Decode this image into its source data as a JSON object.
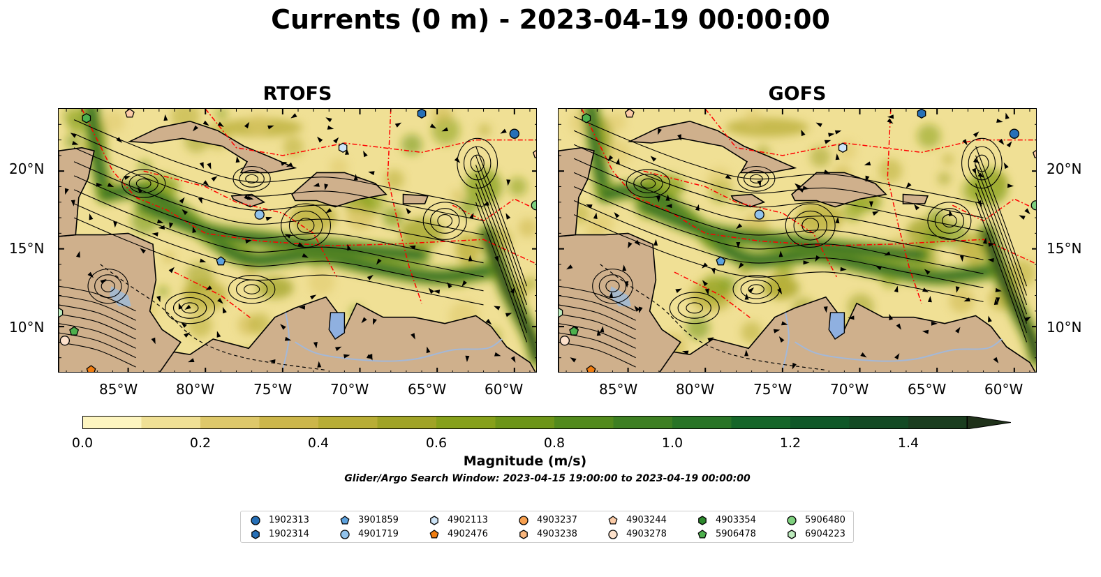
{
  "figure": {
    "title": "Currents (0 m) - 2023-04-19 00:00:00",
    "window_note": "Glider/Argo Search Window: 2023-04-15 19:00:00 to 2023-04-19 00:00:00"
  },
  "panels": [
    {
      "title": "RTOFS"
    },
    {
      "title": "GOFS"
    }
  ],
  "axes": {
    "lon_labels": [
      "85°W",
      "80°W",
      "75°W",
      "70°W",
      "65°W",
      "60°W"
    ],
    "lat_labels": [
      "20°N",
      "15°N",
      "10°N"
    ],
    "lon_range": [
      -89.5,
      -58.5
    ],
    "lat_range": [
      7.0,
      24.0
    ]
  },
  "colorbar": {
    "label": "Magnitude (m/s)",
    "ticks": [
      "0.0",
      "0.2",
      "0.4",
      "0.6",
      "0.8",
      "1.0",
      "1.2",
      "1.4"
    ],
    "range": [
      0,
      1.5
    ],
    "extend": "max",
    "colors": [
      "#fdf5c0",
      "#f0e095",
      "#dec86a",
      "#ccb64a",
      "#b8ad35",
      "#a0a326",
      "#86a01a",
      "#6d9518",
      "#528a1c",
      "#3d7f22",
      "#287426",
      "#156629",
      "#0f5828",
      "#134a24",
      "#1a3d1f",
      "#1f311a"
    ]
  },
  "colors": {
    "land": "#cfb08c",
    "lake": "#8fb0e0",
    "river": "#a3b8d8",
    "eez": "#ff0000",
    "stream": "#000000"
  },
  "legend": [
    {
      "id": "1902313",
      "marker": "circle",
      "color": "#2770b7"
    },
    {
      "id": "1902314",
      "marker": "hexagon",
      "color": "#2770b7"
    },
    {
      "id": "3901859",
      "marker": "pentagon",
      "color": "#5da2de"
    },
    {
      "id": "4901719",
      "marker": "circle",
      "color": "#92c3ec"
    },
    {
      "id": "4902113",
      "marker": "hexagon",
      "color": "#cde4f7"
    },
    {
      "id": "4902476",
      "marker": "pentagon",
      "color": "#f07d10"
    },
    {
      "id": "4903237",
      "marker": "circle",
      "color": "#f7a050"
    },
    {
      "id": "4903238",
      "marker": "hexagon",
      "color": "#f9b67d"
    },
    {
      "id": "4903244",
      "marker": "pentagon",
      "color": "#fbcba7"
    },
    {
      "id": "4903278",
      "marker": "circle",
      "color": "#fde1cb"
    },
    {
      "id": "4903354",
      "marker": "hexagon",
      "color": "#2d8a2d"
    },
    {
      "id": "5906478",
      "marker": "pentagon",
      "color": "#4db04d"
    },
    {
      "id": "5906480",
      "marker": "circle",
      "color": "#7ed07e"
    },
    {
      "id": "6904223",
      "marker": "hexagon",
      "color": "#bdebbd"
    }
  ],
  "floats": [
    {
      "marker": "hexagon",
      "color": "#4db04d",
      "lon": -87.7,
      "lat": 23.4
    },
    {
      "marker": "pentagon",
      "color": "#fbcba7",
      "lon": -84.9,
      "lat": 23.7
    },
    {
      "marker": "hexagon",
      "color": "#2770b7",
      "lon": -66.0,
      "lat": 23.7
    },
    {
      "marker": "circle",
      "color": "#2770b7",
      "lon": -60.0,
      "lat": 22.4
    },
    {
      "marker": "hexagon",
      "color": "#cde4f7",
      "lon": -71.1,
      "lat": 21.5
    },
    {
      "marker": "pentagon",
      "color": "#fbcba7",
      "lon": -58.5,
      "lat": 21.1
    },
    {
      "marker": "circle",
      "color": "#7ed07e",
      "lon": -58.6,
      "lat": 17.8
    },
    {
      "marker": "circle",
      "color": "#92c3ec",
      "lon": -76.5,
      "lat": 17.2
    },
    {
      "marker": "pentagon",
      "color": "#5da2de",
      "lon": -79.0,
      "lat": 14.2
    },
    {
      "marker": "hexagon",
      "color": "#bdebbd",
      "lon": -89.5,
      "lat": 10.9
    },
    {
      "marker": "pentagon",
      "color": "#4db04d",
      "lon": -88.5,
      "lat": 9.7
    },
    {
      "marker": "circle",
      "color": "#fde1cb",
      "lon": -89.1,
      "lat": 9.1
    },
    {
      "marker": "pentagon",
      "color": "#f07d10",
      "lon": -87.4,
      "lat": 7.2
    }
  ]
}
